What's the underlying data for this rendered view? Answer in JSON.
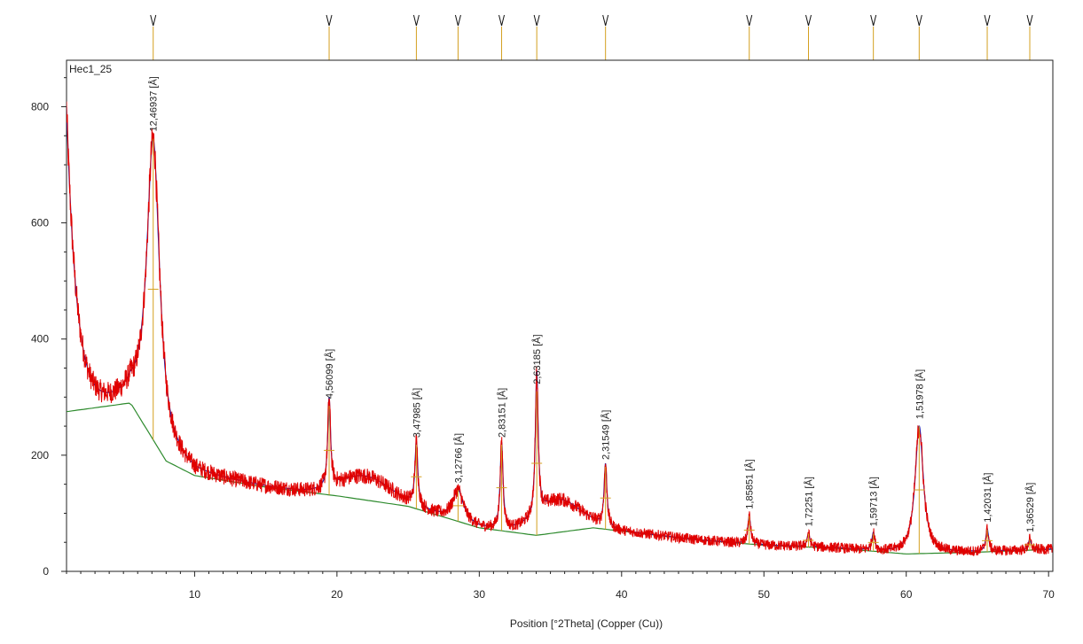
{
  "chart_data": {
    "type": "line",
    "title": "",
    "sample_name": "Hec1_25",
    "xlabel": "Position [°2Theta] (Copper (Cu))",
    "ylabel": "",
    "xlim": [
      1,
      70.3
    ],
    "ylim": [
      0,
      880
    ],
    "x_ticks": [
      10,
      20,
      30,
      40,
      50,
      60,
      70
    ],
    "y_ticks": [
      0,
      200,
      400,
      600,
      800
    ],
    "grid": false,
    "legend": "none",
    "colors": {
      "observed": "#e00000",
      "calculated": "#1a1aaa",
      "background": "#2e8b2e",
      "peak_marker": "#d4a020",
      "axis": "#222222"
    },
    "peaks": [
      {
        "two_theta": 7.09,
        "d_label": "12,46937 [Å]",
        "height": 745
      },
      {
        "two_theta": 19.45,
        "d_label": "4,56099 [Å]",
        "height": 285
      },
      {
        "two_theta": 25.58,
        "d_label": "3,47985 [Å]",
        "height": 218
      },
      {
        "two_theta": 28.51,
        "d_label": "3,12766 [Å]",
        "height": 140
      },
      {
        "two_theta": 31.57,
        "d_label": "2,83151 [Å]",
        "height": 218
      },
      {
        "two_theta": 34.04,
        "d_label": "2,63185 [Å]",
        "height": 310
      },
      {
        "two_theta": 38.87,
        "d_label": "2,31549 [Å]",
        "height": 180
      },
      {
        "two_theta": 48.97,
        "d_label": "1,85851 [Å]",
        "height": 95
      },
      {
        "two_theta": 53.13,
        "d_label": "1,72251 [Å]",
        "height": 65
      },
      {
        "two_theta": 57.69,
        "d_label": "1,59713 [Å]",
        "height": 65
      },
      {
        "two_theta": 60.91,
        "d_label": "1,51978 [Å]",
        "height": 250
      },
      {
        "two_theta": 65.69,
        "d_label": "1,42031 [Å]",
        "height": 72
      },
      {
        "two_theta": 68.68,
        "d_label": "1,36529 [Å]",
        "height": 55
      }
    ],
    "background_curve": {
      "x": [
        1,
        5.5,
        8,
        10,
        15,
        20,
        25,
        30,
        34,
        38,
        45,
        50,
        55,
        60,
        65,
        70.3
      ],
      "y": [
        275,
        290,
        190,
        165,
        145,
        130,
        112,
        75,
        62,
        75,
        55,
        45,
        40,
        30,
        33,
        38
      ]
    }
  }
}
